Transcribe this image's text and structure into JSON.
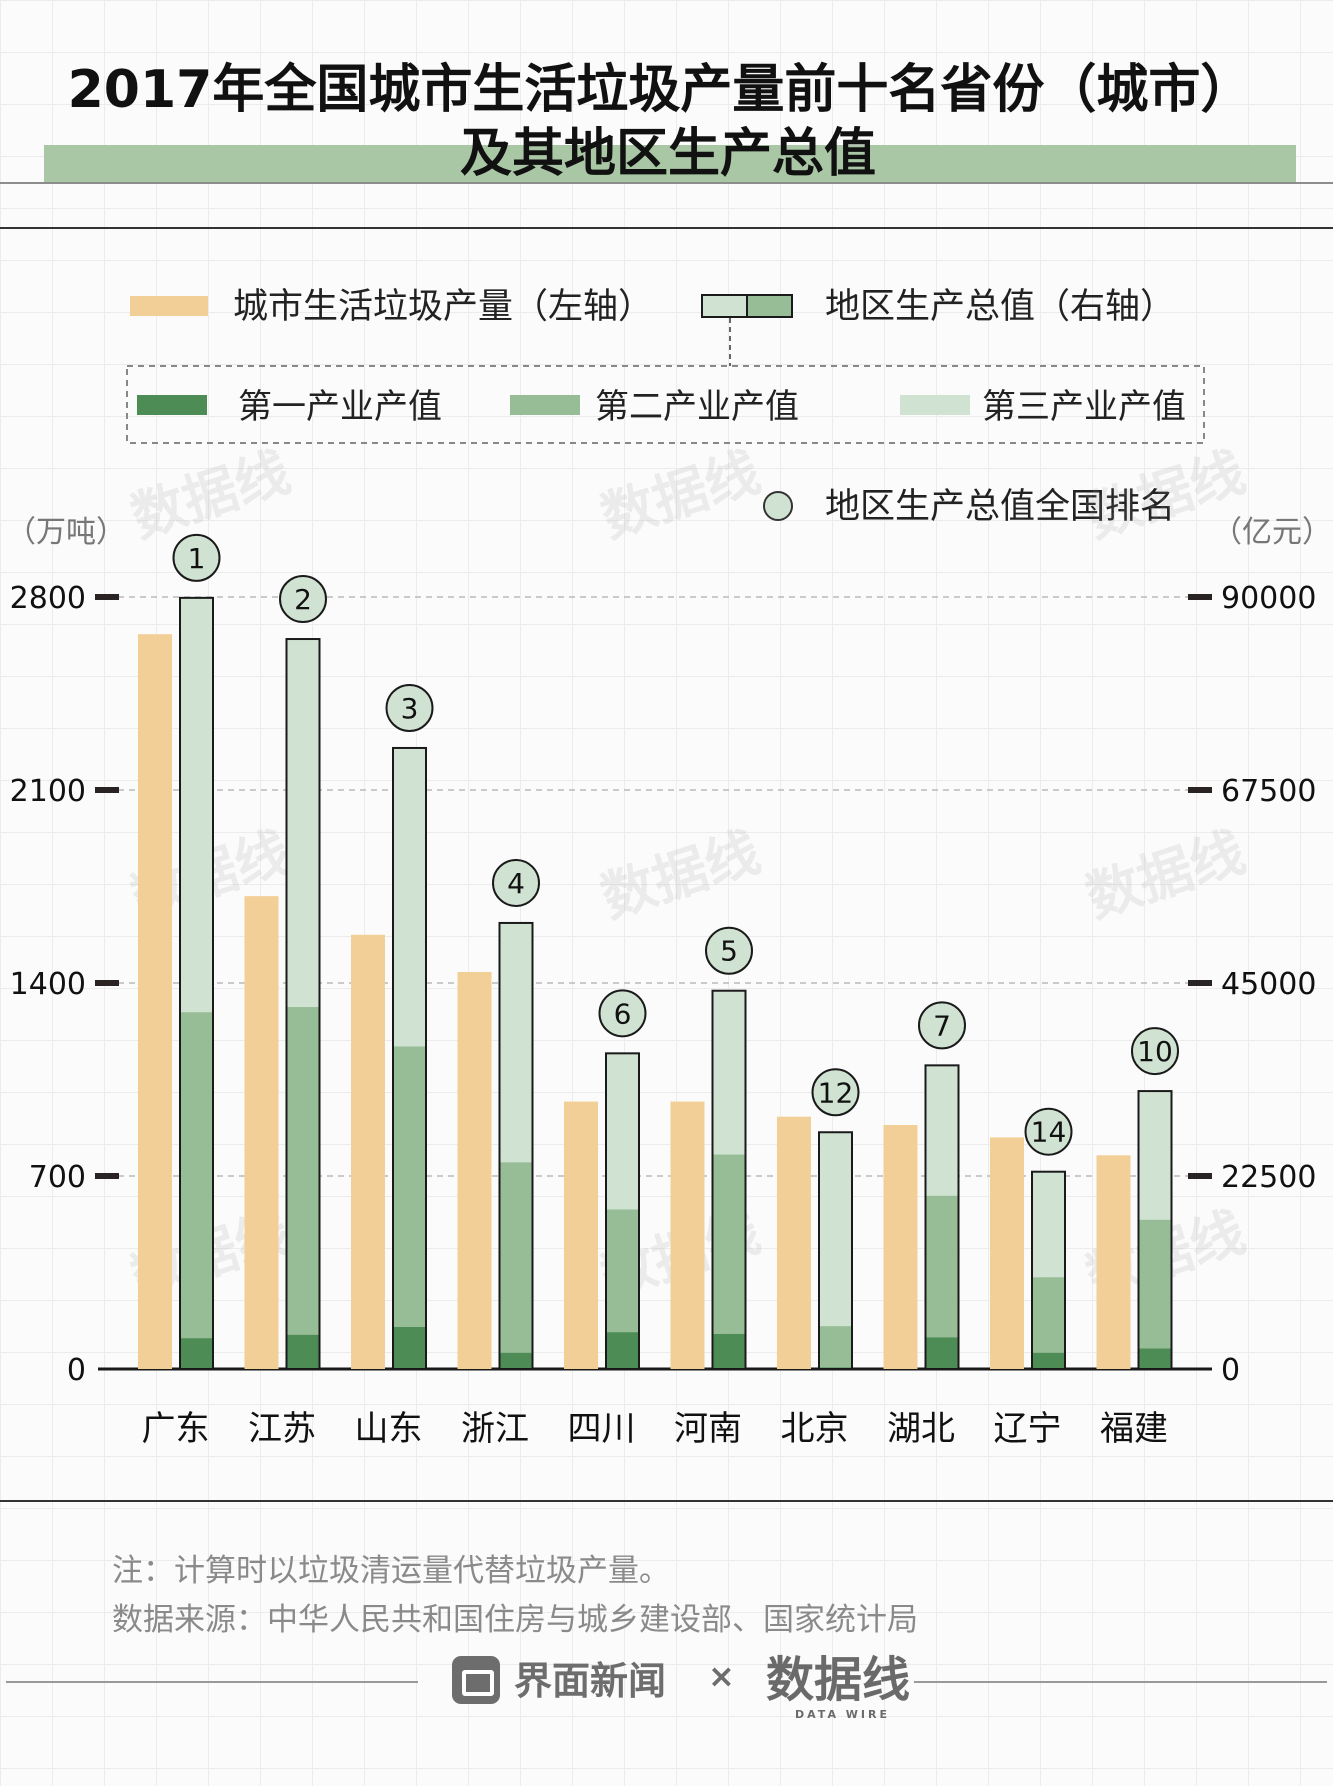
{
  "chart_data": {
    "type": "bar",
    "title_line1": "2017年全国城市生活垃圾产量前十名省份（城市）",
    "title_line2": "及其地区生产总值",
    "legend": {
      "waste": "城市生活垃圾产量（左轴）",
      "gdp": "地区生产总值（右轴）",
      "primary": "第一产业产值",
      "secondary": "第二产业产值",
      "tertiary": "第三产业产值",
      "rank": "地区生产总值全国排名"
    },
    "y_left_unit": "（万吨）",
    "y_right_unit": "（亿元）",
    "y_left_ticks": [
      0,
      700,
      1400,
      2100,
      2800
    ],
    "y_right_ticks": [
      0,
      22500,
      45000,
      67500,
      90000
    ],
    "y_left_lim": [
      0,
      2800
    ],
    "y_right_lim": [
      0,
      90000
    ],
    "grid": true,
    "categories": [
      "广东",
      "江苏",
      "山东",
      "浙江",
      "四川",
      "河南",
      "北京",
      "湖北",
      "辽宁",
      "福建"
    ],
    "series": [
      {
        "name": "城市生活垃圾产量（左轴）",
        "axis": "left",
        "values": [
          2665,
          1715,
          1575,
          1440,
          970,
          970,
          915,
          885,
          840,
          775
        ]
      },
      {
        "name": "第一产业产值",
        "axis": "right",
        "values": [
          3600,
          4000,
          4900,
          1900,
          4300,
          4100,
          200,
          3700,
          1900,
          2400
        ]
      },
      {
        "name": "第二产业产值",
        "axis": "right",
        "values": [
          38000,
          38200,
          32700,
          22200,
          14300,
          20900,
          4800,
          16500,
          8800,
          15000
        ]
      },
      {
        "name": "第三产业产值",
        "axis": "right",
        "values": [
          48300,
          42900,
          34800,
          27900,
          18200,
          19100,
          22600,
          15200,
          12300,
          15000
        ]
      }
    ],
    "gdp_rank": [
      1,
      2,
      3,
      4,
      6,
      5,
      12,
      7,
      14,
      10
    ],
    "colors": {
      "waste": "#f2cf96",
      "primary": "#4e8c56",
      "secondary": "#97bd97",
      "tertiary": "#d0e2d2",
      "outline": "#1a1a1a"
    }
  },
  "footer": {
    "note": "注：计算时以垃圾清运量代替垃圾产量。",
    "source": "数据来源：中华人民共和国住房与城乡建设部、国家统计局",
    "brand_left": "界面新闻",
    "separator": "×",
    "brand_right": "数据线",
    "brand_right_sub": "DATA WIRE"
  }
}
